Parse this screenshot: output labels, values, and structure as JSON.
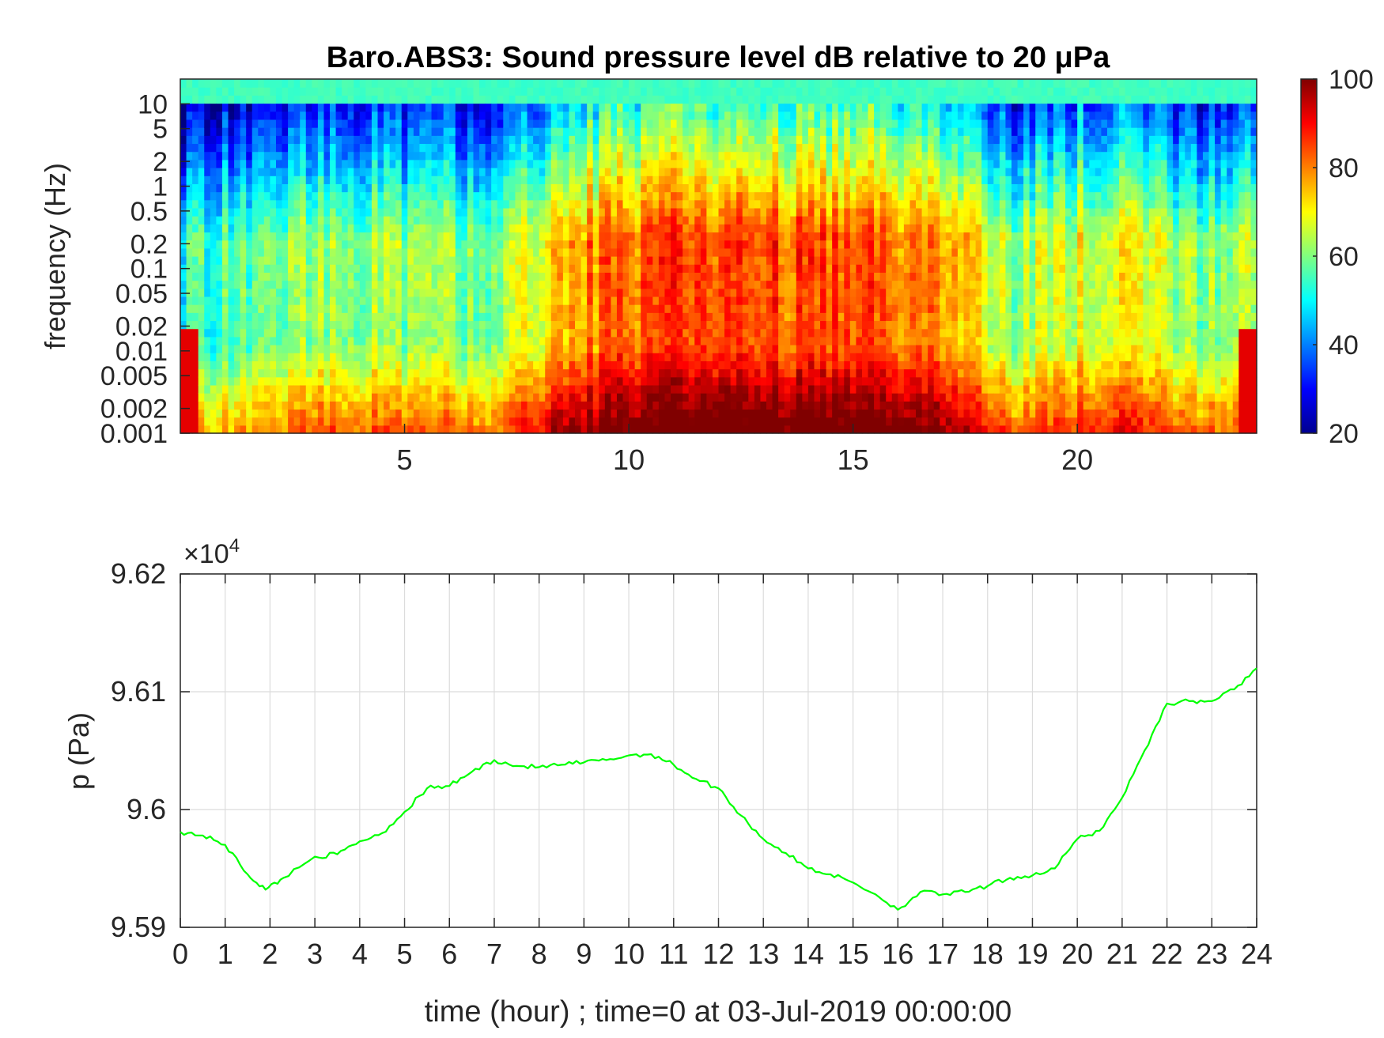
{
  "chart_data": [
    {
      "type": "heatmap",
      "title": "Baro.ABS3: Sound pressure level dB relative to 20 μPa",
      "xlabel": "",
      "ylabel": "frequency (Hz)",
      "xlim": [
        0,
        24
      ],
      "ylim": [
        0.001,
        20
      ],
      "yscale": "log",
      "x_ticks": [
        "5",
        "10",
        "15",
        "20"
      ],
      "y_ticks": [
        "10",
        "5",
        "2",
        "1",
        "0.5",
        "0.2",
        "0.1",
        "0.05",
        "0.02",
        "0.01",
        "0.005",
        "0.002",
        "0.001"
      ],
      "colorbar": {
        "label": "",
        "range": [
          20,
          100
        ],
        "ticks": [
          "100",
          "80",
          "60",
          "40",
          "20"
        ],
        "colormap": "jet"
      },
      "grid": false,
      "level_profile": {
        "description_hours": [
          0,
          3,
          7,
          8.5,
          10,
          12,
          13,
          15,
          17,
          18.5,
          20.7,
          23,
          24
        ],
        "mid_band_level_dB": [
          50,
          60,
          58,
          75,
          80,
          84,
          82,
          82,
          78,
          60,
          68,
          58,
          60
        ]
      }
    },
    {
      "type": "line",
      "title": "",
      "xlabel": "time (hour) ; time=0 at 03-Jul-2019 00:00:00",
      "ylabel": "p (Pa)",
      "y_exponent_label": "×10",
      "y_exponent_power": "4",
      "xlim": [
        0,
        24
      ],
      "ylim": [
        95900,
        96200
      ],
      "x_ticks": [
        "0",
        "1",
        "2",
        "3",
        "4",
        "5",
        "6",
        "7",
        "8",
        "9",
        "10",
        "11",
        "12",
        "13",
        "14",
        "15",
        "16",
        "17",
        "18",
        "19",
        "20",
        "21",
        "22",
        "23",
        "24"
      ],
      "y_ticks": [
        "9.62",
        "9.61",
        "9.6",
        "9.59"
      ],
      "grid": true,
      "series": [
        {
          "color": "#00ff00",
          "x": [
            0,
            0.5,
            1,
            1.5,
            1.9,
            2.3,
            3,
            3.5,
            4,
            4.5,
            5,
            5.5,
            6,
            6.5,
            7,
            7.5,
            8,
            8.5,
            9,
            9.5,
            10,
            10.5,
            11,
            11.5,
            12,
            12.5,
            13,
            13.5,
            14,
            14.5,
            15,
            15.5,
            16,
            16.5,
            17,
            17.5,
            18,
            18.5,
            19,
            19.5,
            20,
            20.5,
            21,
            21.5,
            22,
            22.5,
            23,
            23.5,
            24
          ],
          "y": [
            95981,
            95978,
            95970,
            95945,
            95932,
            95942,
            95960,
            95962,
            95973,
            95980,
            95998,
            96018,
            96020,
            96032,
            96042,
            96037,
            96036,
            96038,
            96040,
            96042,
            96046,
            96047,
            96038,
            96026,
            96018,
            95995,
            95975,
            95963,
            95950,
            95945,
            95938,
            95928,
            95915,
            95930,
            95928,
            95930,
            95935,
            95942,
            95944,
            95950,
            95975,
            95982,
            96010,
            96050,
            96090,
            96092,
            96092,
            96102,
            96120
          ]
        }
      ]
    }
  ]
}
